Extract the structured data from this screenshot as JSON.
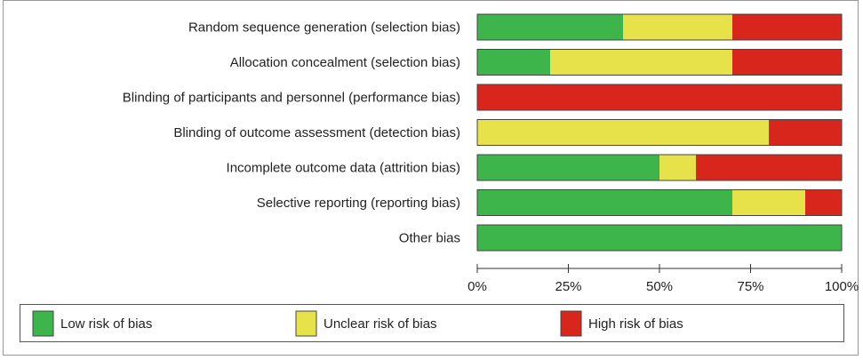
{
  "chart_data": {
    "type": "bar",
    "orientation": "horizontal",
    "stacked": true,
    "categories": [
      "Random sequence generation (selection bias)",
      "Allocation concealment (selection bias)",
      "Blinding of participants and personnel (performance bias)",
      "Blinding of outcome assessment (detection bias)",
      "Incomplete outcome data (attrition bias)",
      "Selective reporting (reporting bias)",
      "Other bias"
    ],
    "series": [
      {
        "name": "Low risk of bias",
        "color": "#3db54a",
        "values": [
          40,
          20,
          0,
          0,
          50,
          70,
          100
        ]
      },
      {
        "name": "Unclear risk of bias",
        "color": "#e8e24a",
        "values": [
          30,
          50,
          0,
          80,
          10,
          20,
          0
        ]
      },
      {
        "name": "High risk of bias",
        "color": "#d8261d",
        "values": [
          30,
          30,
          100,
          20,
          40,
          10,
          0
        ]
      }
    ],
    "xlim": [
      0,
      100
    ],
    "xticks": [
      {
        "value": 0,
        "label": "0%"
      },
      {
        "value": 25,
        "label": "25%"
      },
      {
        "value": 50,
        "label": "50%"
      },
      {
        "value": 75,
        "label": "75%"
      },
      {
        "value": 100,
        "label": "100%"
      }
    ],
    "legend": "bottom"
  }
}
